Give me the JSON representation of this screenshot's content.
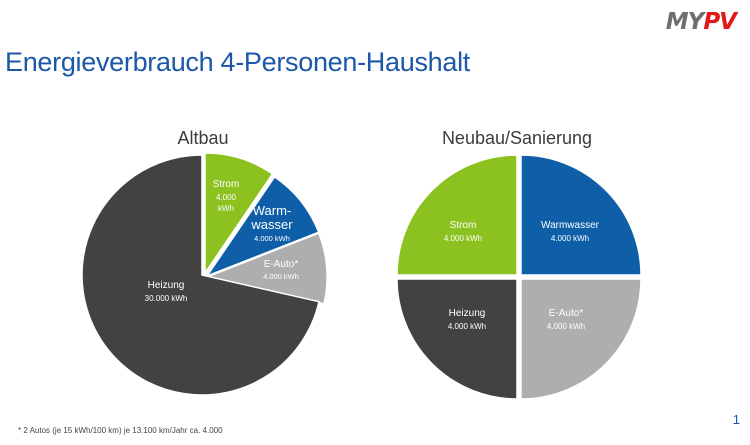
{
  "header": {
    "logo_my": "MY",
    "logo_pv": "PV",
    "title": "Energieverbrauch 4-Personen-Haushalt"
  },
  "colors": {
    "strom": "#8cc220",
    "warmwasser": "#0e5ea8",
    "eauto": "#aeaeae",
    "heizung": "#424242",
    "title_blue": "#1c57a8"
  },
  "chart_data": [
    {
      "type": "pie",
      "title": "Altbau",
      "unit": "kWh",
      "slices": [
        {
          "name": "Strom",
          "value": 4000,
          "value_label": "4.000 kWh",
          "color": "#8cc220"
        },
        {
          "name": "Warmwasser",
          "display_lines": [
            "Warm-",
            "wasser"
          ],
          "value": 4000,
          "value_label": "4.000 kWh",
          "color": "#0e5ea8"
        },
        {
          "name": "E-Auto*",
          "value": 4000,
          "value_label": "4.000 kWh",
          "color": "#aeaeae"
        },
        {
          "name": "Heizung",
          "value": 30000,
          "value_label": "30.000 kWh",
          "color": "#424242"
        }
      ]
    },
    {
      "type": "pie",
      "title": "Neubau/Sanierung",
      "unit": "kWh",
      "slices": [
        {
          "name": "Warmwasser",
          "value": 4000,
          "value_label": "4.000 kWh",
          "color": "#0e5ea8"
        },
        {
          "name": "E-Auto*",
          "value": 4000,
          "value_label": "4.000 kWh",
          "color": "#aeaeae"
        },
        {
          "name": "Heizung",
          "value": 4000,
          "value_label": "4.000 kWh",
          "color": "#424242"
        },
        {
          "name": "Strom",
          "value": 4000,
          "value_label": "4.000 kWh",
          "color": "#8cc220"
        }
      ]
    }
  ],
  "footnote": "* 2 Autos (je 15 kWh/100 km) je 13.100 km/Jahr ca. 4.000",
  "page_number": "1"
}
